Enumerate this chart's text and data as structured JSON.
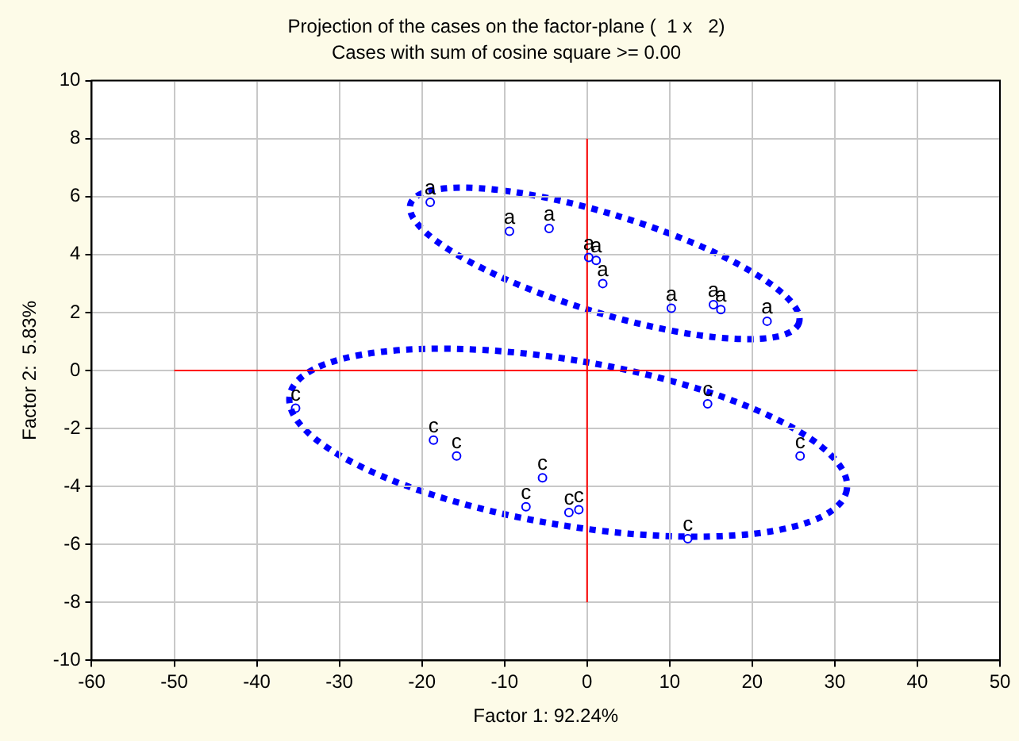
{
  "chart_data": {
    "type": "scatter",
    "title": "Projection of the cases on the factor-plane (  1 x   2)",
    "subtitle": "Cases with sum of cosine square >= 0.00",
    "xlabel": "Factor 1: 92.24%",
    "ylabel": "Factor 2:  5.83%",
    "xlim": [
      -60,
      50
    ],
    "xticks": [
      -60,
      -50,
      -40,
      -30,
      -20,
      -10,
      0,
      10,
      20,
      30,
      40,
      50
    ],
    "ylim": [
      -10,
      10
    ],
    "yticks": [
      -10,
      -8,
      -6,
      -4,
      -2,
      0,
      2,
      4,
      6,
      8,
      10
    ],
    "grid": true,
    "legend": false,
    "marker": "circle",
    "series": [
      {
        "type": "scatter",
        "color": "#0000ff",
        "x": [
          -19.0,
          -9.4,
          -4.6,
          0.2,
          1.1,
          1.9,
          10.2,
          15.3,
          16.2,
          21.8
        ],
        "values": [
          5.8,
          4.8,
          4.9,
          3.9,
          3.8,
          3.0,
          2.15,
          2.27,
          2.1,
          1.7
        ],
        "value_labels": [
          "a",
          "a",
          "a",
          "a",
          "a",
          "a",
          "a",
          "a",
          "a",
          "a"
        ]
      },
      {
        "type": "scatter",
        "color": "#0000ff",
        "x": [
          -35.3,
          -18.6,
          -15.8,
          -5.4,
          -7.4,
          -2.2,
          -1.0,
          12.2,
          14.6,
          25.8
        ],
        "values": [
          -1.3,
          -2.4,
          -2.95,
          -3.7,
          -4.7,
          -4.9,
          -4.8,
          -5.8,
          -1.15,
          -2.95
        ],
        "value_labels": [
          "c",
          "c",
          "c",
          "c",
          "c",
          "c",
          "c",
          "c",
          "c",
          "c"
        ]
      },
      {
        "type": "line",
        "color": "#ff0000",
        "marker": "none",
        "x": [
          -50,
          40
        ],
        "values": [
          0,
          0
        ]
      },
      {
        "type": "line",
        "color": "#ff0000",
        "marker": "none",
        "x": [
          0,
          0
        ],
        "values": [
          -8,
          8
        ]
      }
    ]
  }
}
